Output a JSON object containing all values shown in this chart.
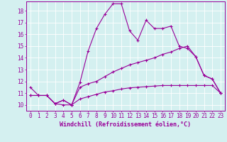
{
  "xlabel": "Windchill (Refroidissement éolien,°C)",
  "background_color": "#d4f0f0",
  "line_color": "#990099",
  "x_ticks": [
    0,
    1,
    2,
    3,
    4,
    5,
    6,
    7,
    8,
    9,
    10,
    11,
    12,
    13,
    14,
    15,
    16,
    17,
    18,
    19,
    20,
    21,
    22,
    23
  ],
  "y_ticks": [
    10,
    11,
    12,
    13,
    14,
    15,
    16,
    17,
    18
  ],
  "ylim": [
    9.5,
    18.8
  ],
  "xlim": [
    -0.5,
    23.5
  ],
  "series1_x": [
    0,
    1,
    2,
    3,
    4,
    5,
    6,
    7,
    8,
    9,
    10,
    11,
    12,
    13,
    14,
    15,
    16,
    17,
    18,
    19,
    20,
    21,
    22,
    23
  ],
  "series1_y": [
    11.5,
    10.8,
    10.8,
    10.1,
    10.0,
    10.0,
    11.9,
    14.6,
    16.5,
    17.7,
    18.6,
    18.6,
    16.3,
    15.5,
    17.2,
    16.5,
    16.5,
    16.7,
    15.0,
    14.8,
    14.1,
    12.5,
    12.2,
    11.0
  ],
  "series2_x": [
    0,
    1,
    2,
    3,
    4,
    5,
    6,
    7,
    8,
    9,
    10,
    11,
    12,
    13,
    14,
    15,
    16,
    17,
    18,
    19,
    20,
    21,
    22,
    23
  ],
  "series2_y": [
    10.8,
    10.8,
    10.8,
    10.1,
    10.4,
    10.0,
    11.5,
    11.8,
    12.0,
    12.4,
    12.8,
    13.1,
    13.4,
    13.6,
    13.8,
    14.0,
    14.3,
    14.5,
    14.8,
    15.0,
    14.1,
    12.5,
    12.2,
    11.0
  ],
  "series3_x": [
    0,
    1,
    2,
    3,
    4,
    5,
    6,
    7,
    8,
    9,
    10,
    11,
    12,
    13,
    14,
    15,
    16,
    17,
    18,
    19,
    20,
    21,
    22,
    23
  ],
  "series3_y": [
    10.8,
    10.8,
    10.8,
    10.1,
    10.4,
    10.0,
    10.5,
    10.7,
    10.9,
    11.1,
    11.2,
    11.35,
    11.45,
    11.5,
    11.55,
    11.6,
    11.65,
    11.65,
    11.65,
    11.65,
    11.65,
    11.65,
    11.65,
    11.0
  ],
  "tick_fontsize": 5.5,
  "xlabel_fontsize": 6.0,
  "grid_color": "#b8dede",
  "spine_color": "#990099"
}
